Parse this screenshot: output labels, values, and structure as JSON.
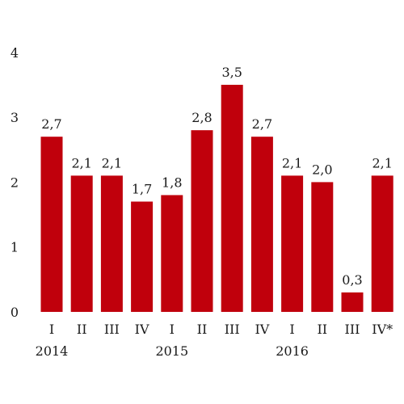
{
  "chart_data": {
    "type": "bar",
    "categories": [
      "I",
      "II",
      "III",
      "IV",
      "I",
      "II",
      "III",
      "IV",
      "I",
      "II",
      "III",
      "IV*"
    ],
    "groups": [
      "2014",
      "2015",
      "2016"
    ],
    "values": [
      2.7,
      2.1,
      2.1,
      1.7,
      1.8,
      2.8,
      3.5,
      2.7,
      2.1,
      2.0,
      0.3,
      2.1
    ],
    "value_labels": [
      "2,7",
      "2,1",
      "2,1",
      "1,7",
      "1,8",
      "2,8",
      "3,5",
      "2,7",
      "2,1",
      "2,0",
      "0,3",
      "2,1"
    ],
    "y_ticks": [
      0,
      1,
      2,
      3,
      4
    ],
    "ylim": [
      0,
      4
    ],
    "bar_color": "#c0000c",
    "grid": false,
    "legend": "none"
  }
}
